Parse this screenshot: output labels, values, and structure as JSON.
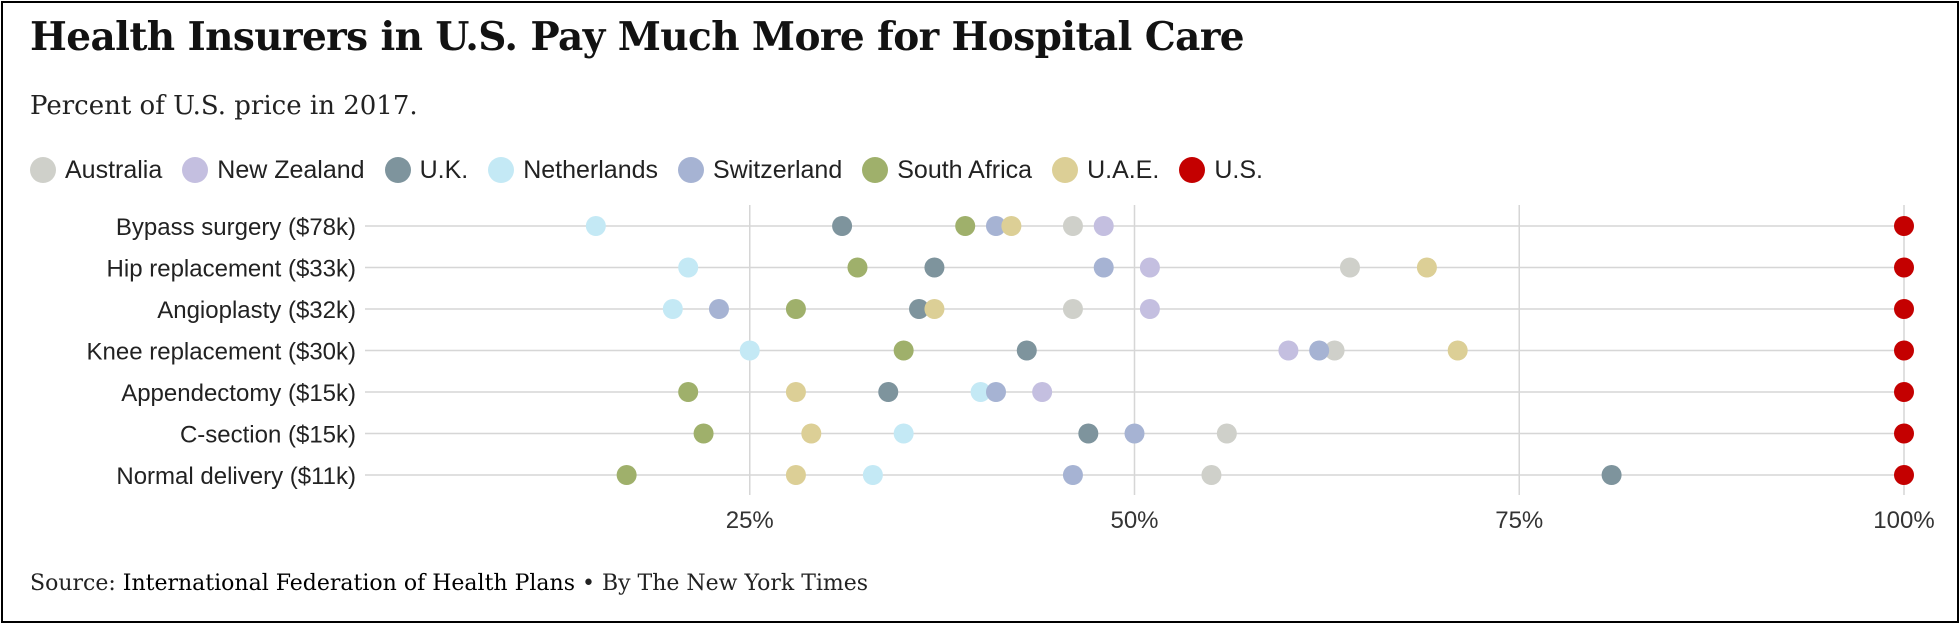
{
  "title": "Health Insurers in U.S. Pay Much More for Hospital Care",
  "subtitle": "Percent of U.S. price in 2017.",
  "source": {
    "label": "Source:",
    "org": "International Federation of Health Plans",
    "bullet": "•",
    "byline": "By The New York Times"
  },
  "colors": {
    "Australia": "#cfd0ca",
    "New Zealand": "#c4bfe0",
    "U.K.": "#7e949d",
    "Netherlands": "#c4e9f5",
    "Switzerland": "#a6b3d3",
    "South Africa": "#9fb06b",
    "U.A.E.": "#dccf96",
    "U.S.": "#c40000"
  },
  "chart_data": {
    "type": "scatter",
    "title": "Health Insurers in U.S. Pay Much More for Hospital Care",
    "subtitle": "Percent of U.S. price in 2017.",
    "xlim": [
      0,
      100
    ],
    "x_ticks": [
      25,
      50,
      75,
      100
    ],
    "x_tick_labels": [
      "25%",
      "50%",
      "75%",
      "100%"
    ],
    "grid": true,
    "legend_position": "top-left",
    "categories": [
      "Bypass surgery ($78k)",
      "Hip replacement ($33k)",
      "Angioplasty ($32k)",
      "Knee replacement ($30k)",
      "Appendectomy ($15k)",
      "C-section ($15k)",
      "Normal delivery ($11k)"
    ],
    "series": [
      {
        "name": "Australia",
        "values": [
          46,
          64,
          46,
          63,
          null,
          56,
          55
        ]
      },
      {
        "name": "New Zealand",
        "values": [
          48,
          51,
          51,
          60,
          44,
          null,
          null
        ]
      },
      {
        "name": "U.K.",
        "values": [
          31,
          37,
          36,
          43,
          34,
          47,
          81
        ]
      },
      {
        "name": "Netherlands",
        "values": [
          15,
          21,
          20,
          25,
          40,
          35,
          33
        ]
      },
      {
        "name": "Switzerland",
        "values": [
          41,
          48,
          23,
          62,
          41,
          50,
          46
        ]
      },
      {
        "name": "South Africa",
        "values": [
          39,
          32,
          28,
          35,
          21,
          22,
          17
        ]
      },
      {
        "name": "U.A.E.",
        "values": [
          42,
          69,
          37,
          71,
          28,
          29,
          28
        ]
      },
      {
        "name": "U.S.",
        "values": [
          100,
          100,
          100,
          100,
          100,
          100,
          100
        ]
      }
    ]
  }
}
